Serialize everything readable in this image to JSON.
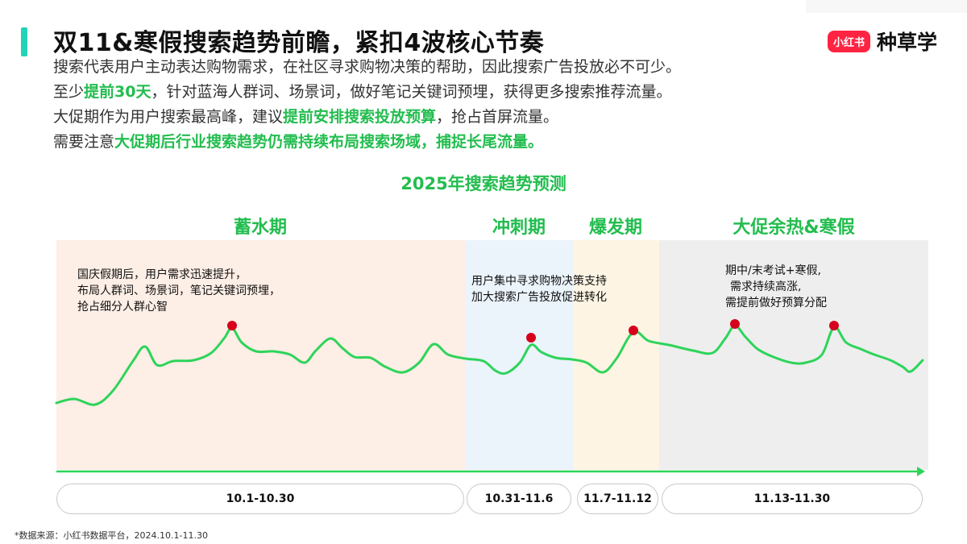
{
  "header": {
    "title": "双11&寒假搜索趋势前瞻，紧扣4波核心节奏",
    "brand_logo": "小红书",
    "brand_name": "种草学"
  },
  "description": {
    "line1": "搜索代表用户主动表达购物需求，在社区寻求购物决策的帮助，因此搜索广告投放必不可少。",
    "line2_pre": "至少",
    "line2_hl": "提前30天",
    "line2_post": "，针对蓝海人群词、场景词，做好笔记关键词预埋，获得更多搜索推荐流量。",
    "line3_pre": "大促期作为用户搜索最高峰，建议",
    "line3_hl": "提前安排搜索投放预算",
    "line3_post": "，抢占首屏流量。",
    "line4_pre": "需要注意",
    "line4_hl": "大促期后行业搜索趋势仍需持续布局搜索场域，捕捉长尾流量。"
  },
  "chart_data": {
    "type": "line",
    "title": "2025年搜索趋势预测",
    "phases": [
      {
        "name": "蓄水期",
        "dates": "10.1-10.30",
        "color": "#fdeee6",
        "annotation": [
          "国庆假期后，用户需求迅速提升，",
          "布局人群词、场景词，笔记关键词预埋，",
          "抢占细分人群心智"
        ]
      },
      {
        "name": "冲刺期",
        "dates": "10.31-11.6",
        "color": "#ebf3fb",
        "annotation": [
          "用户集中寻求购物决策支持",
          "加大搜索广告投放促进转化"
        ]
      },
      {
        "name": "爆发期",
        "dates": "11.7-11.12",
        "color": "#fdf4e3",
        "annotation": []
      },
      {
        "name": "大促余热&寒假",
        "dates": "11.13-11.30",
        "color": "#eeeeee",
        "annotation": [
          "期中/末考试+寒假,",
          "需求持续高涨,",
          "需提前做好预算分配"
        ]
      }
    ],
    "line_color": "#2ed45a",
    "marker_color": "#d6001c",
    "axis_color": "#2ed45a",
    "grid": false
  },
  "footer": {
    "source": "*数据来源：小红书数据平台，2024.10.1-11.30"
  }
}
